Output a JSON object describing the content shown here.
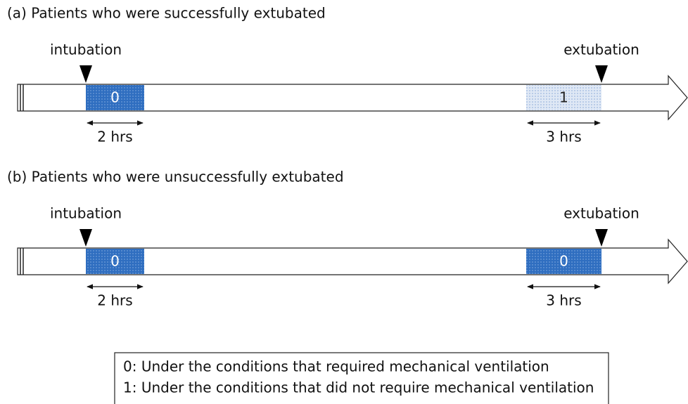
{
  "panels": [
    {
      "title": "(a) Patients who were successfully extubated",
      "start_label": "intubation",
      "end_label": "extubation",
      "boxes": [
        {
          "label": "0",
          "duration": "2 hrs"
        },
        {
          "label": "1",
          "duration": "3 hrs"
        }
      ]
    },
    {
      "title": "(b) Patients who were unsuccessfully extubated",
      "start_label": "intubation",
      "end_label": "extubation",
      "boxes": [
        {
          "label": "0",
          "duration": "2 hrs"
        },
        {
          "label": "0",
          "duration": "3 hrs"
        }
      ]
    }
  ],
  "legend": [
    "0: Under the conditions that required mechanical ventilation",
    "1: Under the conditions that did not require mechanical ventilation"
  ]
}
